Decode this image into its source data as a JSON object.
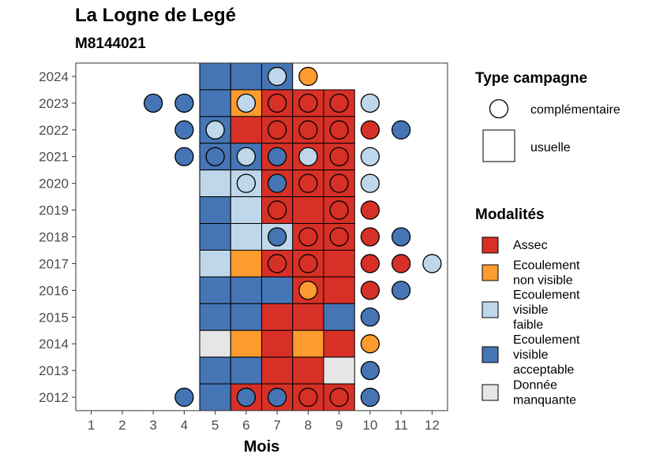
{
  "title": "La Logne de Legé",
  "subtitle": "M8144021",
  "chart_data": {
    "type": "heatmap",
    "xlabel": "Mois",
    "ylabel": "",
    "x_ticks": [
      1,
      2,
      3,
      4,
      5,
      6,
      7,
      8,
      9,
      10,
      11,
      12
    ],
    "y_ticks": [
      "2012",
      "2013",
      "2014",
      "2015",
      "2016",
      "2017",
      "2018",
      "2019",
      "2020",
      "2021",
      "2022",
      "2023",
      "2024"
    ],
    "xlim": [
      0.5,
      12.5
    ],
    "ylim": [
      2011.5,
      2024.5
    ],
    "grid": false,
    "colors": {
      "Assec": "#d73027",
      "Ecoulement non visible": "#fd9b2e",
      "Ecoulement visible faible": "#bfd7ea",
      "Ecoulement visible acceptable": "#4575b4",
      "Donnée manquante": "#e6e6e6"
    },
    "usuelle": [
      {
        "year": 2024,
        "months": {
          "5": "Ecoulement visible acceptable",
          "6": "Ecoulement visible acceptable",
          "7": "Ecoulement visible acceptable"
        }
      },
      {
        "year": 2023,
        "months": {
          "5": "Ecoulement visible acceptable",
          "6": "Ecoulement non visible",
          "7": "Assec",
          "8": "Assec",
          "9": "Assec"
        }
      },
      {
        "year": 2022,
        "months": {
          "5": "Ecoulement visible acceptable",
          "6": "Assec",
          "7": "Assec",
          "8": "Assec",
          "9": "Assec"
        }
      },
      {
        "year": 2021,
        "months": {
          "5": "Ecoulement visible acceptable",
          "6": "Ecoulement visible acceptable",
          "7": "Assec",
          "8": "Assec",
          "9": "Assec"
        }
      },
      {
        "year": 2020,
        "months": {
          "5": "Ecoulement visible faible",
          "6": "Ecoulement visible faible",
          "7": "Assec",
          "8": "Assec",
          "9": "Assec"
        }
      },
      {
        "year": 2019,
        "months": {
          "5": "Ecoulement visible acceptable",
          "6": "Ecoulement visible faible",
          "7": "Assec",
          "8": "Assec",
          "9": "Assec"
        }
      },
      {
        "year": 2018,
        "months": {
          "5": "Ecoulement visible acceptable",
          "6": "Ecoulement visible faible",
          "7": "Ecoulement visible faible",
          "8": "Assec",
          "9": "Assec"
        }
      },
      {
        "year": 2017,
        "months": {
          "5": "Ecoulement visible faible",
          "6": "Ecoulement non visible",
          "7": "Assec",
          "8": "Assec",
          "9": "Assec"
        }
      },
      {
        "year": 2016,
        "months": {
          "5": "Ecoulement visible acceptable",
          "6": "Ecoulement visible acceptable",
          "7": "Ecoulement visible acceptable",
          "8": "Assec",
          "9": "Assec"
        }
      },
      {
        "year": 2015,
        "months": {
          "5": "Ecoulement visible acceptable",
          "6": "Ecoulement visible acceptable",
          "7": "Assec",
          "8": "Assec",
          "9": "Ecoulement visible acceptable"
        }
      },
      {
        "year": 2014,
        "months": {
          "5": "Donnée manquante",
          "6": "Ecoulement non visible",
          "7": "Assec",
          "8": "Ecoulement non visible",
          "9": "Assec"
        }
      },
      {
        "year": 2013,
        "months": {
          "5": "Ecoulement visible acceptable",
          "6": "Ecoulement visible acceptable",
          "7": "Assec",
          "8": "Assec",
          "9": "Donnée manquante"
        }
      },
      {
        "year": 2012,
        "months": {
          "5": "Ecoulement visible acceptable",
          "6": "Assec",
          "7": "Assec",
          "8": "Assec",
          "9": "Assec"
        }
      }
    ],
    "complementaire": [
      {
        "year": 2024,
        "month": 7,
        "status": "Ecoulement visible faible"
      },
      {
        "year": 2024,
        "month": 8,
        "status": "Ecoulement non visible"
      },
      {
        "year": 2023,
        "month": 3,
        "status": "Ecoulement visible acceptable"
      },
      {
        "year": 2023,
        "month": 4,
        "status": "Ecoulement visible acceptable"
      },
      {
        "year": 2023,
        "month": 6,
        "status": "Ecoulement visible faible"
      },
      {
        "year": 2023,
        "month": 7,
        "status": "Assec"
      },
      {
        "year": 2023,
        "month": 8,
        "status": "Assec"
      },
      {
        "year": 2023,
        "month": 9,
        "status": "Assec"
      },
      {
        "year": 2023,
        "month": 10,
        "status": "Ecoulement visible faible"
      },
      {
        "year": 2022,
        "month": 4,
        "status": "Ecoulement visible acceptable"
      },
      {
        "year": 2022,
        "month": 5,
        "status": "Ecoulement visible faible"
      },
      {
        "year": 2022,
        "month": 7,
        "status": "Assec"
      },
      {
        "year": 2022,
        "month": 8,
        "status": "Assec"
      },
      {
        "year": 2022,
        "month": 9,
        "status": "Assec"
      },
      {
        "year": 2022,
        "month": 10,
        "status": "Assec"
      },
      {
        "year": 2022,
        "month": 11,
        "status": "Ecoulement visible acceptable"
      },
      {
        "year": 2021,
        "month": 4,
        "status": "Ecoulement visible acceptable"
      },
      {
        "year": 2021,
        "month": 5,
        "status": "Ecoulement visible acceptable"
      },
      {
        "year": 2021,
        "month": 6,
        "status": "Ecoulement visible faible"
      },
      {
        "year": 2021,
        "month": 7,
        "status": "Ecoulement visible acceptable"
      },
      {
        "year": 2021,
        "month": 8,
        "status": "Ecoulement visible faible"
      },
      {
        "year": 2021,
        "month": 9,
        "status": "Assec"
      },
      {
        "year": 2021,
        "month": 10,
        "status": "Ecoulement visible faible"
      },
      {
        "year": 2020,
        "month": 6,
        "status": "Ecoulement visible faible"
      },
      {
        "year": 2020,
        "month": 7,
        "status": "Ecoulement visible acceptable"
      },
      {
        "year": 2020,
        "month": 8,
        "status": "Assec"
      },
      {
        "year": 2020,
        "month": 9,
        "status": "Assec"
      },
      {
        "year": 2020,
        "month": 10,
        "status": "Ecoulement visible faible"
      },
      {
        "year": 2019,
        "month": 7,
        "status": "Assec"
      },
      {
        "year": 2019,
        "month": 9,
        "status": "Assec"
      },
      {
        "year": 2019,
        "month": 10,
        "status": "Assec"
      },
      {
        "year": 2018,
        "month": 7,
        "status": "Ecoulement visible acceptable"
      },
      {
        "year": 2018,
        "month": 8,
        "status": "Assec"
      },
      {
        "year": 2018,
        "month": 9,
        "status": "Assec"
      },
      {
        "year": 2018,
        "month": 10,
        "status": "Assec"
      },
      {
        "year": 2018,
        "month": 11,
        "status": "Ecoulement visible acceptable"
      },
      {
        "year": 2017,
        "month": 7,
        "status": "Assec"
      },
      {
        "year": 2017,
        "month": 8,
        "status": "Assec"
      },
      {
        "year": 2017,
        "month": 10,
        "status": "Assec"
      },
      {
        "year": 2017,
        "month": 11,
        "status": "Assec"
      },
      {
        "year": 2017,
        "month": 12,
        "status": "Ecoulement visible faible"
      },
      {
        "year": 2016,
        "month": 8,
        "status": "Ecoulement non visible"
      },
      {
        "year": 2016,
        "month": 10,
        "status": "Assec"
      },
      {
        "year": 2016,
        "month": 11,
        "status": "Ecoulement visible acceptable"
      },
      {
        "year": 2015,
        "month": 10,
        "status": "Ecoulement visible acceptable"
      },
      {
        "year": 2014,
        "month": 10,
        "status": "Ecoulement non visible"
      },
      {
        "year": 2013,
        "month": 10,
        "status": "Ecoulement visible acceptable"
      },
      {
        "year": 2012,
        "month": 4,
        "status": "Ecoulement visible acceptable"
      },
      {
        "year": 2012,
        "month": 6,
        "status": "Ecoulement visible acceptable"
      },
      {
        "year": 2012,
        "month": 7,
        "status": "Ecoulement visible acceptable"
      },
      {
        "year": 2012,
        "month": 8,
        "status": "Assec"
      },
      {
        "year": 2012,
        "month": 9,
        "status": "Assec"
      },
      {
        "year": 2012,
        "month": 10,
        "status": "Ecoulement visible acceptable"
      }
    ],
    "legend": {
      "placement": "right",
      "type_title": "Type campagne",
      "type_entries": [
        "complémentaire",
        "usuelle"
      ],
      "modalites_title": "Modalités",
      "modalites_entries": [
        {
          "key": "Assec",
          "lines": [
            "Assec"
          ]
        },
        {
          "key": "Ecoulement non visible",
          "lines": [
            "Ecoulement",
            "non visible"
          ]
        },
        {
          "key": "Ecoulement visible faible",
          "lines": [
            "Ecoulement",
            "visible",
            "faible"
          ]
        },
        {
          "key": "Ecoulement visible acceptable",
          "lines": [
            "Ecoulement",
            "visible",
            "acceptable"
          ]
        },
        {
          "key": "Donnée manquante",
          "lines": [
            "Donnée",
            "manquante"
          ]
        }
      ]
    }
  }
}
